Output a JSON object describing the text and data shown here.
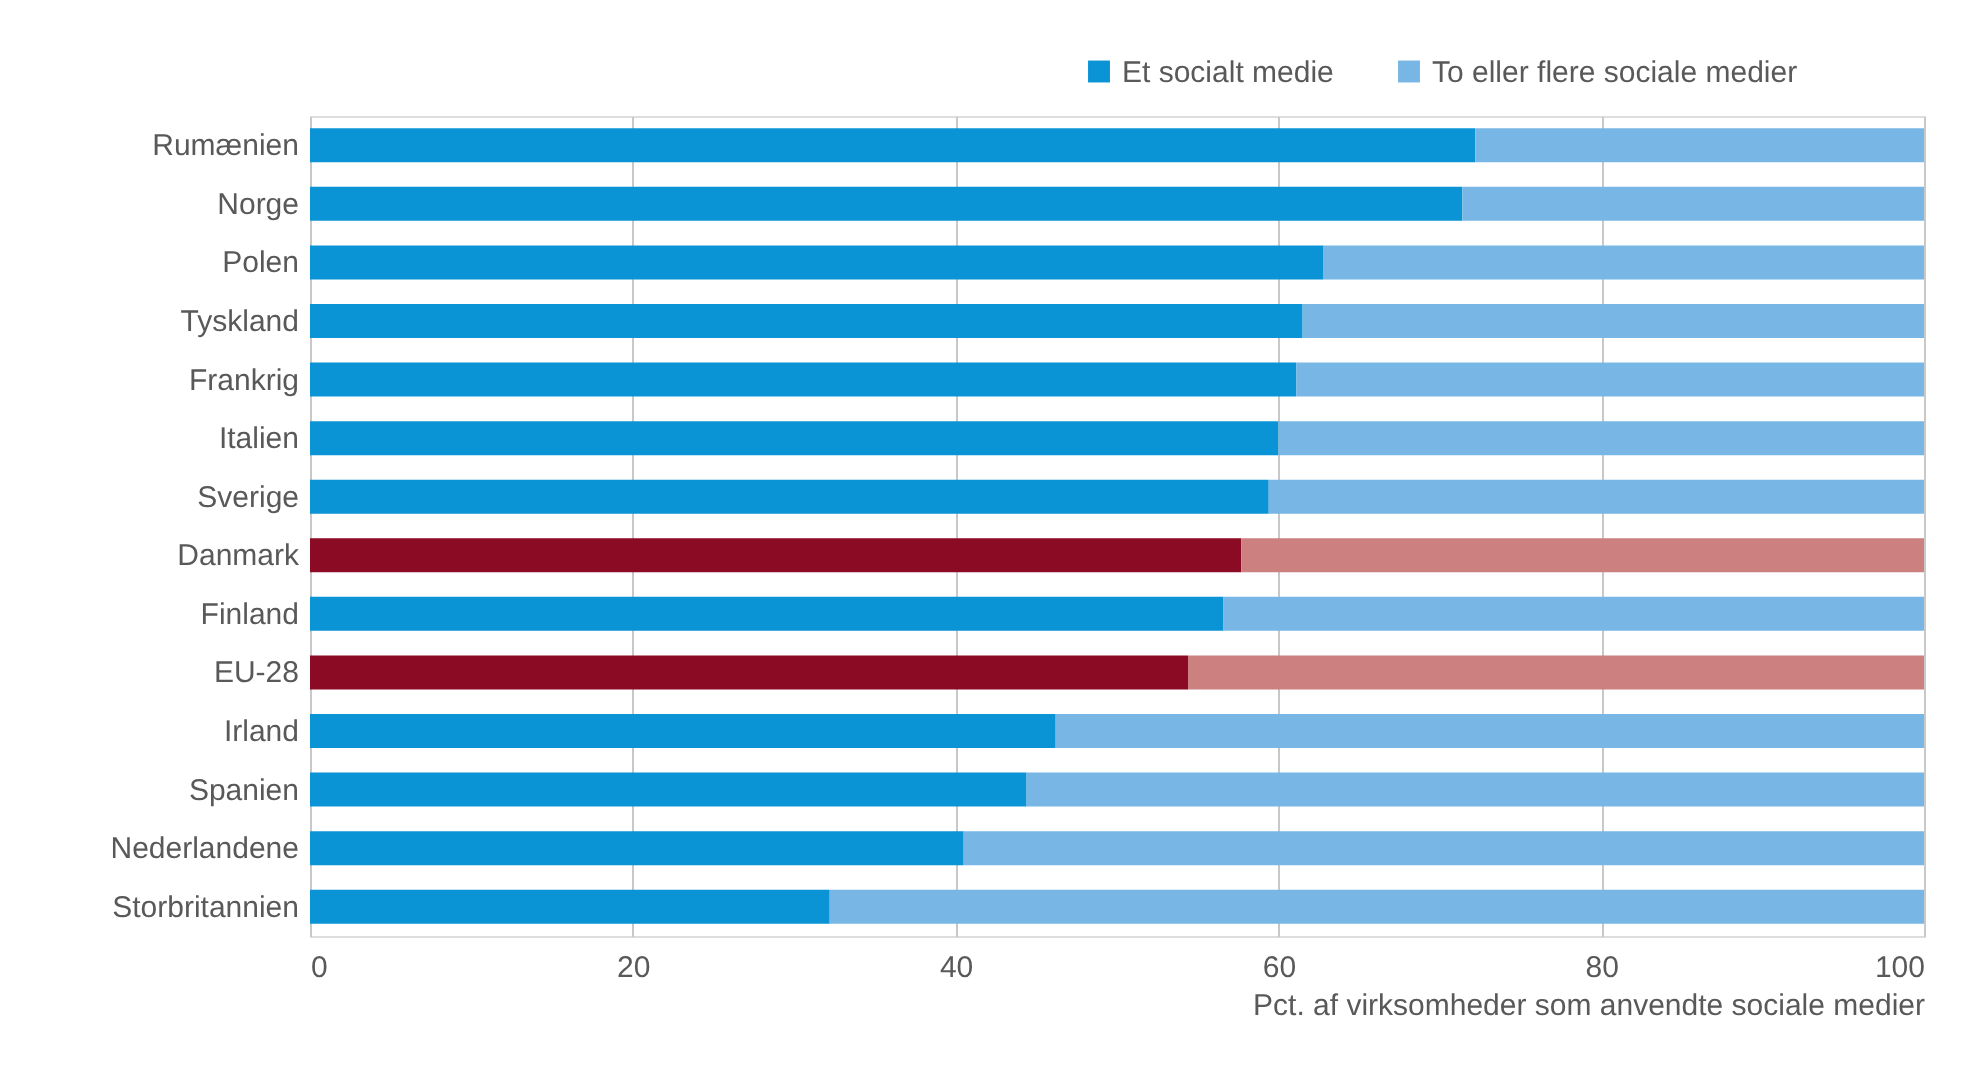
{
  "chart_data": {
    "type": "bar",
    "orientation": "horizontal",
    "stacked": true,
    "categories": [
      "Rumænien",
      "Norge",
      "Polen",
      "Tyskland",
      "Frankrig",
      "Italien",
      "Sverige",
      "Danmark",
      "Finland",
      "EU-28",
      "Irland",
      "Spanien",
      "Nederlandene",
      "Storbritannien"
    ],
    "series": [
      {
        "name": "Et socialt medie",
        "color": "#0a93d5",
        "values": [
          72.2,
          71.4,
          62.8,
          61.5,
          61.1,
          60.0,
          59.4,
          57.7,
          56.6,
          54.4,
          46.2,
          44.4,
          40.5,
          32.2
        ],
        "colors": [
          "#0a93d5",
          "#0a93d5",
          "#0a93d5",
          "#0a93d5",
          "#0a93d5",
          "#0a93d5",
          "#0a93d5",
          "#8b0a24",
          "#0a93d5",
          "#8b0a24",
          "#0a93d5",
          "#0a93d5",
          "#0a93d5",
          "#0a93d5"
        ]
      },
      {
        "name": "To eller flere sociale medier",
        "color": "#78b7e5",
        "values": [
          27.8,
          28.6,
          37.2,
          38.5,
          38.9,
          40.0,
          40.6,
          42.3,
          43.4,
          45.6,
          53.8,
          55.6,
          59.5,
          67.8
        ],
        "colors": [
          "#78b7e5",
          "#78b7e5",
          "#78b7e5",
          "#78b7e5",
          "#78b7e5",
          "#78b7e5",
          "#78b7e5",
          "#cc8080",
          "#78b7e5",
          "#cc8080",
          "#78b7e5",
          "#78b7e5",
          "#78b7e5",
          "#78b7e5"
        ]
      }
    ],
    "xlim": [
      0,
      100
    ],
    "xticks": [
      0,
      20,
      40,
      60,
      80,
      100
    ],
    "xlabel": "Pct. af virksomheder som anvendte sociale medier",
    "grid": "x",
    "legend": "top right"
  }
}
